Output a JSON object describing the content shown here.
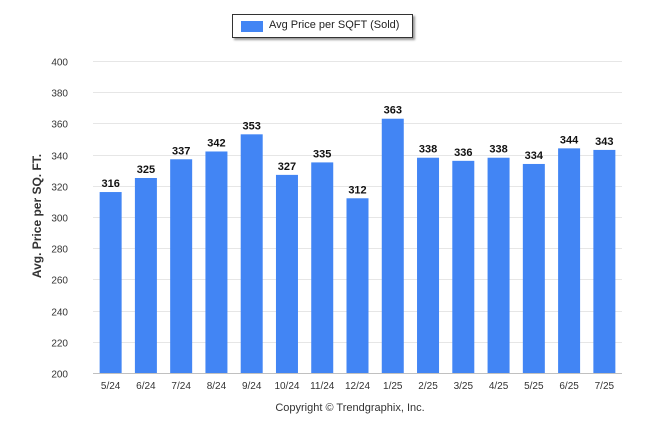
{
  "chart_data": {
    "type": "bar",
    "title": "",
    "xlabel": "",
    "ylabel": "Avg. Price per SQ. FT.",
    "ylim": [
      200,
      400
    ],
    "yticks": [
      200,
      220,
      240,
      260,
      280,
      300,
      320,
      340,
      360,
      380,
      400
    ],
    "grid": true,
    "legend_position": "top-center",
    "bar_color": "#4285f4",
    "categories": [
      "5/24",
      "6/24",
      "7/24",
      "8/24",
      "9/24",
      "10/24",
      "11/24",
      "12/24",
      "1/25",
      "2/25",
      "3/25",
      "4/25",
      "5/25",
      "6/25",
      "7/25"
    ],
    "series": [
      {
        "name": "Avg Price per SQFT (Sold)",
        "values": [
          316,
          325,
          337,
          342,
          353,
          327,
          335,
          312,
          363,
          338,
          336,
          338,
          334,
          344,
          343
        ]
      }
    ]
  },
  "footer": {
    "copyright": "Copyright © Trendgraphix, Inc."
  }
}
